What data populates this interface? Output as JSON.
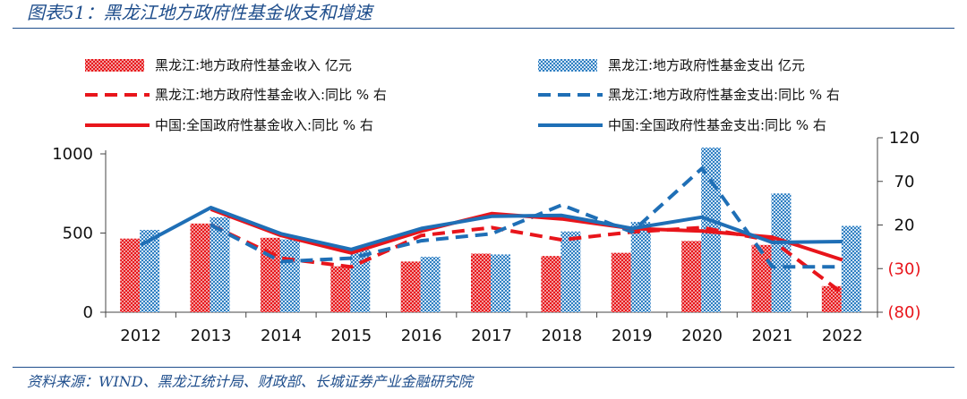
{
  "title": "图表51：黑龙江地方政府性基金收支和增速",
  "source": "资料来源：WIND、黑龙江统计局、财政部、长城证券产业金融研究院",
  "chart_data": {
    "type": "bar",
    "categories": [
      "2012",
      "2013",
      "2014",
      "2015",
      "2016",
      "2017",
      "2018",
      "2019",
      "2020",
      "2021",
      "2022"
    ],
    "left_axis": {
      "ylim": [
        0,
        1000
      ],
      "ticks": [
        0,
        500,
        1000
      ],
      "tick_labels": [
        "0",
        "500",
        "1000"
      ]
    },
    "right_axis": {
      "ylim": [
        -80,
        120
      ],
      "ticks": [
        -80,
        -30,
        20,
        70,
        120
      ],
      "tick_labels": [
        "(80)",
        "(30)",
        "20",
        "70",
        "120"
      ],
      "negative_label_color": "#e8151b"
    },
    "bar_series": [
      {
        "name": "黑龙江:地方政府性基金收入 亿元",
        "color": "#e8151b",
        "values": [
          465,
          560,
          470,
          290,
          320,
          370,
          355,
          375,
          450,
          425,
          165
        ]
      },
      {
        "name": "黑龙江:地方政府性基金支出 亿元",
        "color": "#2f7fc1",
        "values": [
          520,
          600,
          460,
          395,
          350,
          365,
          510,
          570,
          1040,
          750,
          545
        ]
      }
    ],
    "line_series": [
      {
        "name": "黑龙江:地方政府性基金收入:同比 % 右",
        "color": "#e8151b",
        "style": "dashed",
        "values": [
          null,
          20,
          -18,
          -28,
          8,
          17,
          3,
          12,
          17,
          2,
          -58
        ]
      },
      {
        "name": "黑龙江:地方政府性基金支出:同比 % 右",
        "color": "#1f6fb6",
        "style": "dashed",
        "values": [
          null,
          20,
          -22,
          -18,
          2,
          10,
          43,
          12,
          85,
          -28,
          -28
        ]
      },
      {
        "name": "中国:全国政府性基金收入:同比 % 右",
        "color": "#e8151b",
        "style": "solid",
        "values": [
          null,
          38,
          8,
          -12,
          13,
          33,
          27,
          16,
          13,
          6,
          -20
        ]
      },
      {
        "name": "中国:全国政府性基金支出:同比 % 右",
        "color": "#1f6fb6",
        "style": "solid",
        "values": [
          -3,
          40,
          10,
          -8,
          16,
          30,
          31,
          16,
          29,
          0,
          1
        ]
      }
    ]
  }
}
